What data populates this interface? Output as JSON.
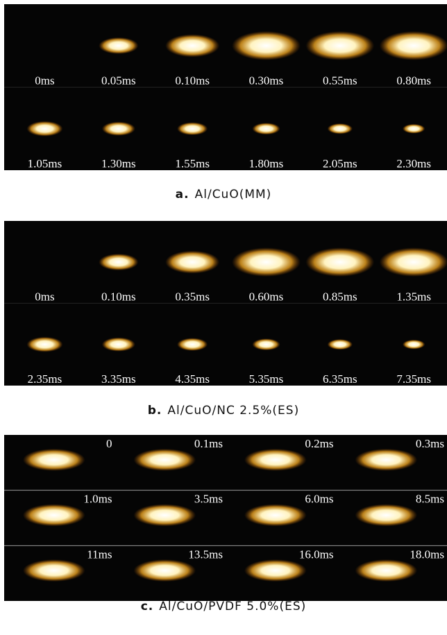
{
  "panels": [
    {
      "label": "a.",
      "caption": "Al/CuO(MM)",
      "rows": [
        [
          "0ms",
          "0.05ms",
          "0.10ms",
          "0.30ms",
          "0.55ms",
          "0.80ms"
        ],
        [
          "1.05ms",
          "1.30ms",
          "1.55ms",
          "1.80ms",
          "2.05ms",
          "2.30ms"
        ]
      ]
    },
    {
      "label": "b.",
      "caption": "Al/CuO/NC 2.5%(ES)",
      "rows": [
        [
          "0ms",
          "0.10ms",
          "0.35ms",
          "0.60ms",
          "0.85ms",
          "1.35ms"
        ],
        [
          "2.35ms",
          "3.35ms",
          "4.35ms",
          "5.35ms",
          "6.35ms",
          "7.35ms"
        ]
      ]
    },
    {
      "label": "c.",
      "caption": "Al/CuO/PVDF 5.0%(ES)",
      "rows": [
        [
          "0",
          "0.1ms",
          "0.2ms",
          "0.3ms"
        ],
        [
          "1.0ms",
          "3.5ms",
          "6.0ms",
          "8.5ms"
        ],
        [
          "11ms",
          "13.5ms",
          "16.0ms",
          "18.0ms"
        ]
      ]
    }
  ]
}
